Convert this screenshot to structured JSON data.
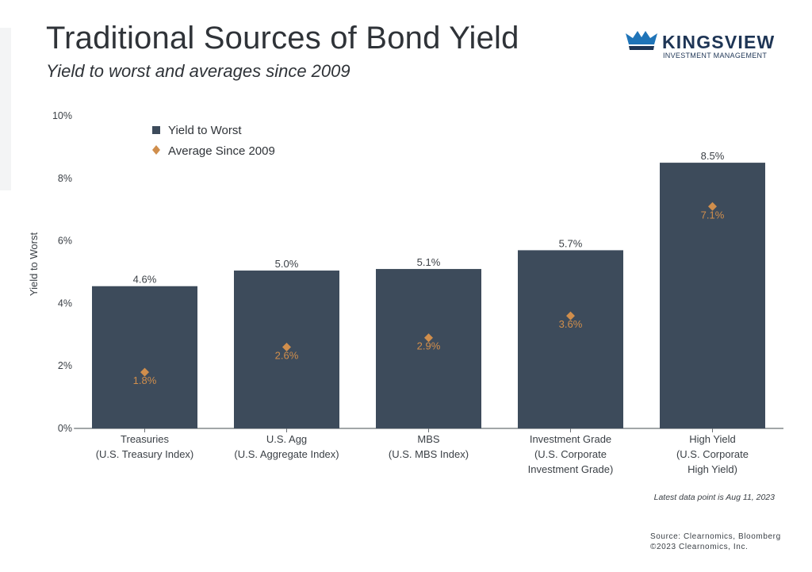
{
  "title": "Traditional Sources of Bond Yield",
  "subtitle": "Yield to worst and averages since 2009",
  "logo": {
    "name": "KINGSVIEW",
    "tagline": "INVESTMENT MANAGEMENT"
  },
  "note": "Latest data point is Aug 11, 2023",
  "source": {
    "line1": "Source: Clearnomics, Bloomberg",
    "line2": "©2023 Clearnomics, Inc."
  },
  "colors": {
    "bar": "#3d4b5b",
    "marker": "#d08e4c",
    "axis": "#6b7075",
    "text": "#3b4046"
  },
  "chart_data": {
    "type": "bar",
    "ylabel": "Yield to Worst",
    "ylim": [
      0,
      10
    ],
    "yticks": [
      0,
      2,
      4,
      6,
      8,
      10
    ],
    "ytick_labels": [
      "0%",
      "2%",
      "4%",
      "6%",
      "8%",
      "10%"
    ],
    "categories": [
      [
        "Treasuries",
        "(U.S. Treasury Index)"
      ],
      [
        "U.S. Agg",
        "(U.S. Aggregate Index)"
      ],
      [
        "MBS",
        "(U.S. MBS Index)"
      ],
      [
        "Investment Grade",
        "(U.S. Corporate",
        "Investment Grade)"
      ],
      [
        "High Yield",
        "(U.S. Corporate",
        "High Yield)"
      ]
    ],
    "series": [
      {
        "name": "Yield to Worst",
        "kind": "bar",
        "values": [
          4.55,
          5.05,
          5.1,
          5.7,
          8.5
        ],
        "labels": [
          "4.6%",
          "5.0%",
          "5.1%",
          "5.7%",
          "8.5%"
        ]
      },
      {
        "name": "Average Since 2009",
        "kind": "marker",
        "values": [
          1.8,
          2.6,
          2.9,
          3.6,
          7.1
        ],
        "labels": [
          "1.8%",
          "2.6%",
          "2.9%",
          "3.6%",
          "7.1%"
        ]
      }
    ],
    "legend": "top-left"
  }
}
